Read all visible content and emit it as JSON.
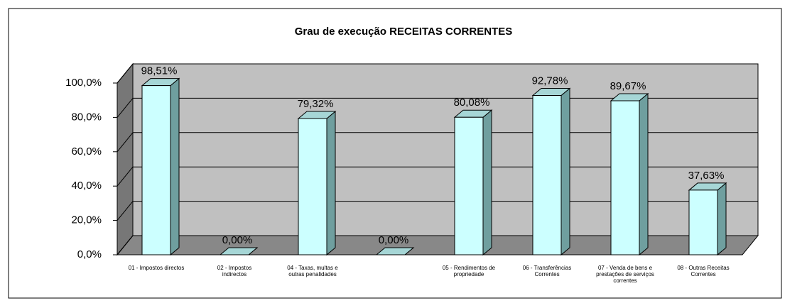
{
  "chart_data": {
    "type": "bar3d",
    "title": "Grau de execução RECEITAS CORRENTES",
    "categories": [
      "01 - Impostos directos",
      "02 - Impostos indirectos",
      "04 - Taxas, multas e outras penalidades",
      null,
      "05 - Rendimentos de propriedade",
      "06 - Transferências Correntes",
      "07 - Venda de bens e prestações de serviços correntes",
      "08 - Outras Receitas Correntes"
    ],
    "values": [
      98.51,
      0,
      79.32,
      0,
      80.08,
      92.78,
      89.67,
      37.63
    ],
    "value_labels": [
      "98,51%",
      "0,00%",
      "79,32%",
      "0,00%",
      "80,08%",
      "92,78%",
      "89,67%",
      "37,63%"
    ],
    "color": "#ccffff",
    "ylim": [
      0,
      100
    ],
    "yticks": [
      {
        "value": 0,
        "label": "0,0%"
      },
      {
        "value": 20,
        "label": "20,0%"
      },
      {
        "value": 40,
        "label": "40,0%"
      },
      {
        "value": 60,
        "label": "60,0%"
      },
      {
        "value": 80,
        "label": "80,0%"
      },
      {
        "value": 100,
        "label": "100,0%"
      }
    ],
    "grid": true
  }
}
